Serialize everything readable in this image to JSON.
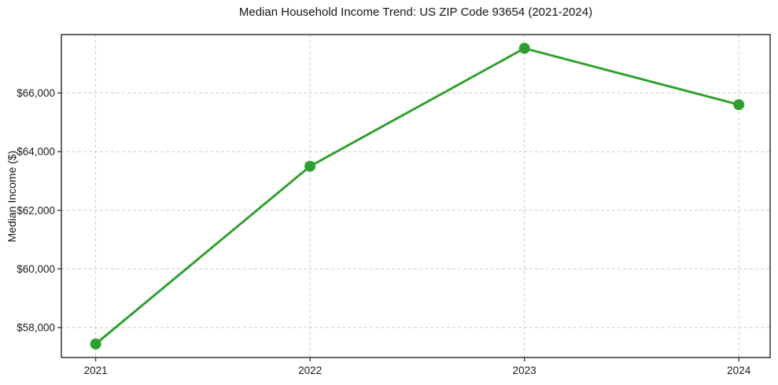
{
  "chart_data": {
    "type": "line",
    "title": "Median Household Income Trend: US ZIP Code 93654 (2021-2024)",
    "xlabel": "",
    "ylabel": "Median Income ($)",
    "categories": [
      2021,
      2022,
      2023,
      2024
    ],
    "x_tick_labels": [
      "2021",
      "2022",
      "2023",
      "2024"
    ],
    "series": [
      {
        "name": "Median Household Income",
        "values": [
          57440,
          63500,
          67520,
          65600
        ]
      }
    ],
    "y_ticks": [
      58000,
      60000,
      62000,
      64000,
      66000
    ],
    "y_tick_labels": [
      "$58,000",
      "$60,000",
      "$62,000",
      "$64,000",
      "$66,000"
    ],
    "xlim": [
      2020.84,
      2024.146
    ],
    "ylim": [
      56980,
      67990
    ],
    "grid": true,
    "grid_style": "dashed",
    "legend_position": "none",
    "line_color": "#2ca02c",
    "marker": "circle",
    "marker_color": "#2ca02c",
    "grid_color": "#cdcdcd",
    "background_color": "#ffffff",
    "frame": "full-box"
  }
}
